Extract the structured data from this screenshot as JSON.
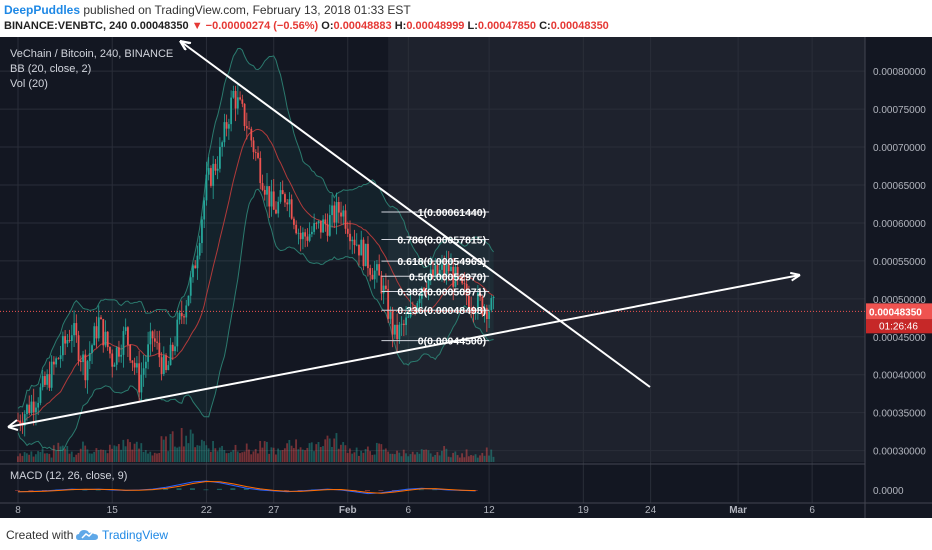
{
  "header": {
    "user": "DeepPuddles",
    "published": "published on TradingView.com, February 13, 2018 01:33 EST",
    "symbol": "BINANCE:VENBTC, 240",
    "last": "0.00048350",
    "change": "−0.00000274 (−0.56%)",
    "o_label": "O:",
    "o": "0.00048883",
    "h_label": "H:",
    "h": "0.00048999",
    "l_label": "L:",
    "l": "0.00047850",
    "c_label": "C:",
    "c": "0.00048350"
  },
  "legend": {
    "title": "VeChain / Bitcoin, 240, BINANCE",
    "bb": "BB (20, close, 2)",
    "vol": "Vol (20)",
    "macd": "MACD (12, 26, close, 9)"
  },
  "footer": {
    "created": "Created with",
    "brand": "TradingView"
  },
  "colors": {
    "background": "#131722",
    "highlight": "#1e222d",
    "up": "#26a69a",
    "down": "#ef5350",
    "text": "#b2b5be",
    "white_line": "#ffffff",
    "price_tag": "#ef5350"
  },
  "chart_data": {
    "type": "candlestick",
    "instrument": "VeChain / Bitcoin",
    "interval": "240",
    "exchange": "BINANCE",
    "ylim": [
      0.000285,
      0.000845
    ],
    "y_ticks": [
      "0.00080000",
      "0.00075000",
      "0.00070000",
      "0.00065000",
      "0.00060000",
      "0.00055000",
      "0.00050000",
      "0.00045000",
      "0.00040000",
      "0.00035000",
      "0.00030000"
    ],
    "x_ticks": [
      "8",
      "15",
      "22",
      "27",
      "Feb",
      "6",
      "12",
      "19",
      "24",
      "Mar",
      "6"
    ],
    "last_price": "0.00048350",
    "countdown": "01:26:46",
    "close_path_days": [
      0,
      2,
      4,
      5,
      6,
      7,
      8,
      9,
      10,
      11,
      12,
      13,
      14,
      15,
      16,
      17,
      18,
      19,
      20,
      21,
      22,
      23,
      24,
      25,
      26,
      27,
      28,
      29,
      30,
      31,
      32,
      33,
      34,
      35,
      35.5
    ],
    "close_path_prices": [
      0.00034,
      0.000385,
      0.00046,
      0.00041,
      0.00047,
      0.00042,
      0.000455,
      0.00039,
      0.00045,
      0.0004,
      0.00047,
      0.00053,
      0.00065,
      0.00069,
      0.00077,
      0.00073,
      0.00067,
      0.000615,
      0.00064,
      0.00058,
      0.00059,
      0.0006,
      0.00062,
      0.00058,
      0.00055,
      0.00052,
      0.00045,
      0.00047,
      0.00052,
      0.00053,
      0.00054,
      0.00051,
      0.000495,
      0.00049,
      0.000484
    ],
    "fibonacci": [
      {
        "label": "1(0.00061440)",
        "price": 0.0006144
      },
      {
        "label": "0.786(0.00057815)",
        "price": 0.00057815
      },
      {
        "label": "0.618(0.00054969)",
        "price": 0.00054969
      },
      {
        "label": "0.5(0.00052970)",
        "price": 0.0005297
      },
      {
        "label": "0.382(0.00050971)",
        "price": 0.00050971
      },
      {
        "label": "0.236(0.00048498)",
        "price": 0.00048498
      },
      {
        "label": "0(0.00044500)",
        "price": 0.000445
      }
    ],
    "fib_start_day": 27,
    "fib_end_day": 35,
    "macd_tick": "0.0000",
    "volume_series": [
      12,
      10,
      14,
      9,
      18,
      15,
      11,
      20,
      16,
      13,
      17,
      22,
      25,
      19,
      14,
      12,
      24,
      28,
      35,
      30,
      26,
      22,
      18,
      15,
      20,
      17,
      14,
      19,
      16,
      13,
      28,
      22,
      18,
      25,
      30,
      27,
      20,
      16,
      12,
      15,
      18,
      14,
      11,
      13,
      10,
      12,
      9,
      15,
      11,
      8
    ],
    "macd_series": [
      -0.2,
      -0.15,
      -0.1,
      0,
      0.1,
      0.05,
      0.1,
      0,
      -0.05,
      0,
      0.1,
      0.3,
      0.6,
      0.9,
      1.0,
      0.8,
      0.5,
      0.2,
      0,
      -0.1,
      -0.2,
      -0.1,
      0,
      0.1,
      0,
      -0.2,
      -0.4,
      -0.3,
      -0.1,
      0.1,
      0.2,
      0.1,
      0,
      -0.05,
      -0.1
    ]
  }
}
